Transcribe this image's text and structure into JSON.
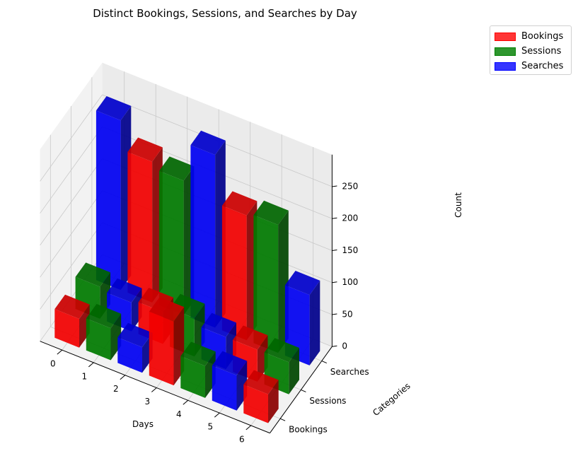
{
  "chart_data": {
    "type": "bar3d",
    "title": "Distinct Bookings, Sessions, and Searches by Day",
    "xlabel": "Days",
    "ylabel": "Categories",
    "zlabel": "Count",
    "x_ticks": [
      "0",
      "1",
      "2",
      "3",
      "4",
      "5",
      "6"
    ],
    "y_ticks": [
      "Bookings",
      "Sessions",
      "Searches"
    ],
    "z_ticks": [
      "0",
      "50",
      "100",
      "150",
      "200",
      "250"
    ],
    "zlim": [
      0,
      270
    ],
    "legend_position": "top-right outside",
    "series": [
      {
        "name": "Bookings",
        "color": "#ff0000",
        "bars": [
          {
            "day": 0,
            "category": "Bookings",
            "value": 45
          },
          {
            "day": 3,
            "category": "Bookings",
            "value": 100
          },
          {
            "day": 6,
            "category": "Bookings",
            "value": 45
          },
          {
            "day": 2,
            "category": "Sessions",
            "value": 50
          },
          {
            "day": 5,
            "category": "Sessions",
            "value": 50
          },
          {
            "day": 1,
            "category": "Searches",
            "value": 220
          },
          {
            "day": 4,
            "category": "Searches",
            "value": 195
          }
        ]
      },
      {
        "name": "Sessions",
        "color": "#008000",
        "bars": [
          {
            "day": 1,
            "category": "Bookings",
            "value": 50
          },
          {
            "day": 4,
            "category": "Bookings",
            "value": 50
          },
          {
            "day": 0,
            "category": "Sessions",
            "value": 50
          },
          {
            "day": 3,
            "category": "Sessions",
            "value": 60
          },
          {
            "day": 6,
            "category": "Sessions",
            "value": 50
          },
          {
            "day": 2,
            "category": "Searches",
            "value": 210
          },
          {
            "day": 5,
            "category": "Searches",
            "value": 200
          }
        ]
      },
      {
        "name": "Searches",
        "color": "#0000ff",
        "bars": [
          {
            "day": 2,
            "category": "Bookings",
            "value": 40
          },
          {
            "day": 5,
            "category": "Bookings",
            "value": 55
          },
          {
            "day": 1,
            "category": "Sessions",
            "value": 45
          },
          {
            "day": 4,
            "category": "Sessions",
            "value": 50
          },
          {
            "day": 0,
            "category": "Searches",
            "value": 265
          },
          {
            "day": 3,
            "category": "Searches",
            "value": 270
          },
          {
            "day": 6,
            "category": "Searches",
            "value": 110
          }
        ]
      }
    ]
  }
}
